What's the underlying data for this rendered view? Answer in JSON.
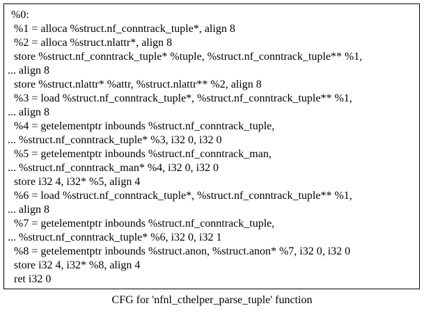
{
  "graph": {
    "caption": "CFG for 'nfnl_cthelper_parse_tuple' function",
    "block": {
      "label": "%0:",
      "lines": [
        "%0:",
        " %1 = alloca %struct.nf_conntrack_tuple*, align 8",
        " %2 = alloca %struct.nlattr*, align 8",
        " store %struct.nf_conntrack_tuple* %tuple, %struct.nf_conntrack_tuple** %1,",
        "... align 8",
        " store %struct.nlattr* %attr, %struct.nlattr** %2, align 8",
        " %3 = load %struct.nf_conntrack_tuple*, %struct.nf_conntrack_tuple** %1,",
        "... align 8",
        " %4 = getelementptr inbounds %struct.nf_conntrack_tuple,",
        "... %struct.nf_conntrack_tuple* %3, i32 0, i32 0",
        " %5 = getelementptr inbounds %struct.nf_conntrack_man,",
        "... %struct.nf_conntrack_man* %4, i32 0, i32 0",
        " store i32 4, i32* %5, align 4",
        " %6 = load %struct.nf_conntrack_tuple*, %struct.nf_conntrack_tuple** %1,",
        "... align 8",
        " %7 = getelementptr inbounds %struct.nf_conntrack_tuple,",
        "... %struct.nf_conntrack_tuple* %6, i32 0, i32 1",
        " %8 = getelementptr inbounds %struct.anon, %struct.anon* %7, i32 0, i32 0",
        " store i32 4, i32* %8, align 4",
        " ret i32 0"
      ]
    }
  }
}
